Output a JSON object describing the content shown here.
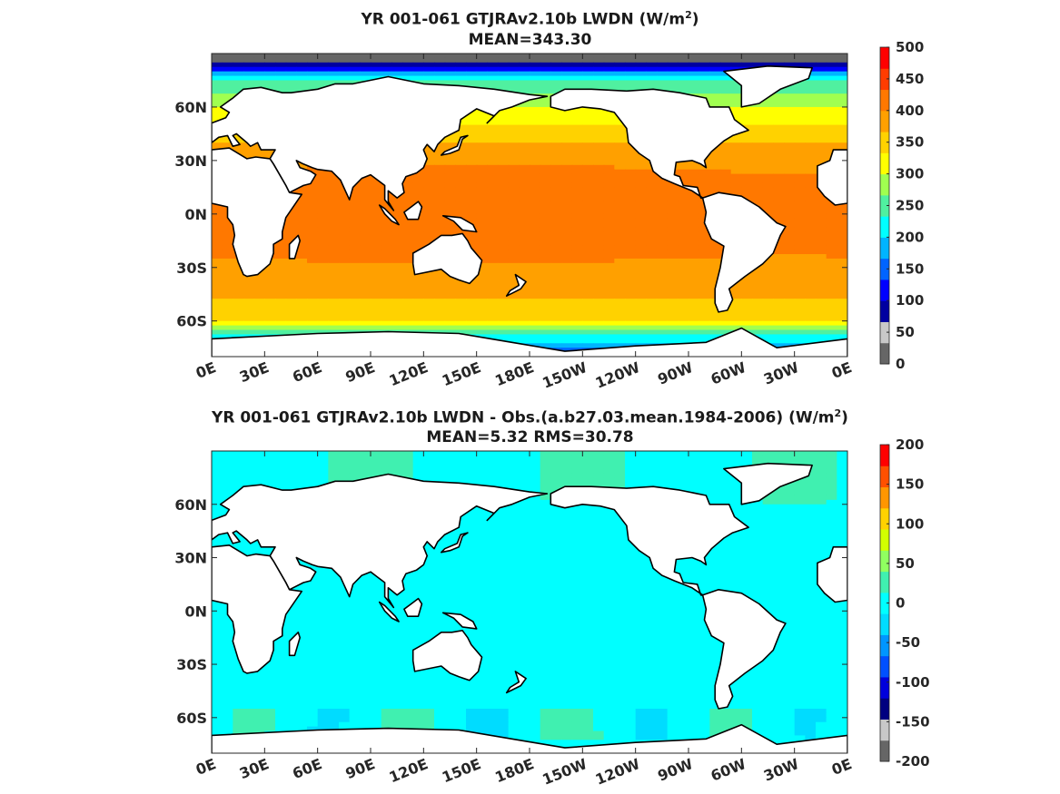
{
  "chart_data": [
    {
      "type": "heatmap",
      "title_prefix": "YR 001-061 GTJRAv2.10b LWDN (W/m",
      "title_sup": "2",
      "title_suffix": ")",
      "subtitle": "MEAN=343.30",
      "x_ticks": [
        "0E",
        "30E",
        "60E",
        "90E",
        "120E",
        "150E",
        "180E",
        "150W",
        "120W",
        "90W",
        "60W",
        "30W",
        "0E"
      ],
      "y_ticks": [
        "60N",
        "30N",
        "0N",
        "30S",
        "60S"
      ],
      "y_tick_lats": [
        60,
        30,
        0,
        -30,
        -60
      ],
      "xlim": [
        0,
        360
      ],
      "ylim": [
        -80,
        90
      ],
      "colorbar": {
        "range": [
          0,
          500
        ],
        "ticks": [
          "500",
          "450",
          "400",
          "350",
          "300",
          "250",
          "200",
          "150",
          "100",
          "50",
          "0"
        ],
        "colors": [
          "#666666",
          "#c8c8c8",
          "#0000a0",
          "#0000ff",
          "#0064ff",
          "#00b4ff",
          "#00ffff",
          "#50f0a0",
          "#a0ff50",
          "#ffff00",
          "#ffd200",
          "#ffa000",
          "#ff7800",
          "#ff3c00",
          "#ff0000"
        ]
      },
      "field": "lwdn"
    },
    {
      "type": "heatmap",
      "title_prefix": "YR 001-061 GTJRAv2.10b LWDN - Obs.(a.b27.03.mean.1984-2006) (W/m",
      "title_sup": "2",
      "title_suffix": ")",
      "subtitle": "MEAN=5.32 RMS=30.78",
      "x_ticks": [
        "0E",
        "30E",
        "60E",
        "90E",
        "120E",
        "150E",
        "180E",
        "150W",
        "120W",
        "90W",
        "60W",
        "30W",
        "0E"
      ],
      "y_ticks": [
        "60N",
        "30N",
        "0N",
        "30S",
        "60S"
      ],
      "y_tick_lats": [
        60,
        30,
        0,
        -30,
        -60
      ],
      "xlim": [
        0,
        360
      ],
      "ylim": [
        -80,
        90
      ],
      "colorbar": {
        "range": [
          -200,
          200
        ],
        "ticks": [
          "200",
          "150",
          "100",
          "50",
          "0",
          "-50",
          "-100",
          "-150",
          "-200"
        ],
        "colors": [
          "#666666",
          "#c8c8c8",
          "#000080",
          "#0000dc",
          "#0050ff",
          "#0096ff",
          "#00dcff",
          "#00ffff",
          "#40f0b0",
          "#90ff60",
          "#d2ff00",
          "#ffd200",
          "#ff9600",
          "#ff5000",
          "#ff0000"
        ]
      },
      "field": "diff"
    }
  ]
}
